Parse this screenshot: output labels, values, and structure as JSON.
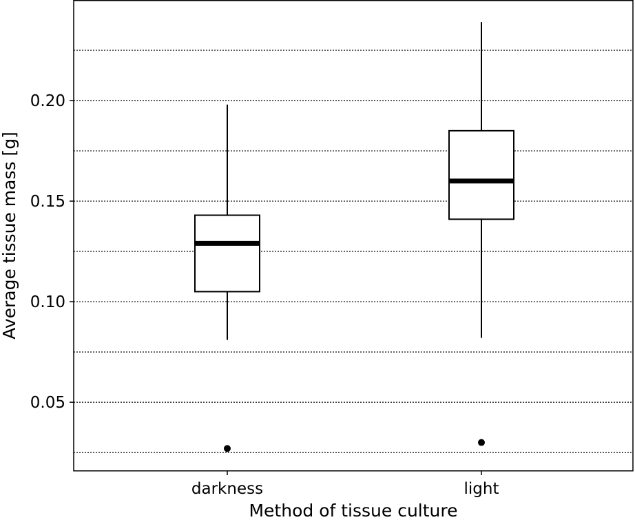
{
  "chart_data": {
    "type": "boxplot",
    "title": "",
    "xlabel": "Method of tissue culture",
    "ylabel": "Average tissue mass [g]",
    "ylim": [
      0.0158,
      0.25
    ],
    "yticks": [
      0.05,
      0.1,
      0.15,
      0.2
    ],
    "ytick_labels": [
      "0.05",
      "0.10",
      "0.15",
      "0.20"
    ],
    "grid": {
      "axis": "y",
      "style": "dotted",
      "values": [
        0.025,
        0.05,
        0.075,
        0.1,
        0.125,
        0.15,
        0.175,
        0.2,
        0.225
      ]
    },
    "categories": [
      "darkness",
      "light"
    ],
    "boxes": [
      {
        "category": "darkness",
        "whisker_low": 0.081,
        "q1": 0.105,
        "median": 0.129,
        "q3": 0.143,
        "whisker_high": 0.198,
        "outliers": [
          0.027
        ]
      },
      {
        "category": "light",
        "whisker_low": 0.082,
        "q1": 0.141,
        "median": 0.16,
        "q3": 0.185,
        "whisker_high": 0.239,
        "outliers": [
          0.03
        ]
      }
    ],
    "colors": {
      "box_fill": "#ffffff",
      "line": "#000000"
    }
  }
}
